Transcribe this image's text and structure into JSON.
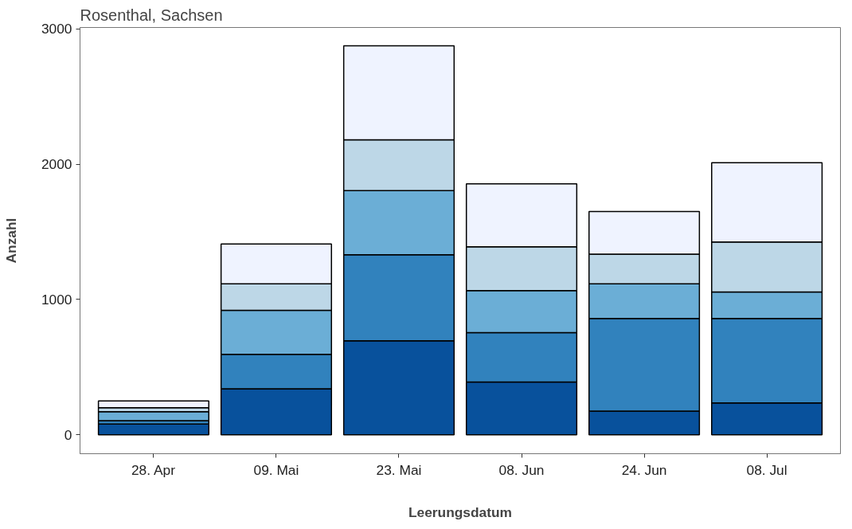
{
  "chart_data": {
    "type": "bar",
    "title": "Rosenthal, Sachsen",
    "xlabel": "Leerungsdatum",
    "ylabel": "Anzahl",
    "categories": [
      "28. Apr",
      "09. Mai",
      "23. Mai",
      "08. Jun",
      "24. Jun",
      "08. Jul"
    ],
    "stacked": true,
    "ylim": [
      -140,
      3010
    ],
    "yticks": [
      0,
      1000,
      2000,
      3000
    ],
    "grid": false,
    "series": [
      {
        "color": "#08519c",
        "values": [
          80,
          340,
          695,
          390,
          175,
          235
        ]
      },
      {
        "color": "#3182bd",
        "values": [
          25,
          255,
          635,
          365,
          685,
          625
        ]
      },
      {
        "color": "#6baed6",
        "values": [
          65,
          325,
          475,
          310,
          255,
          195
        ]
      },
      {
        "color": "#bdd7e7",
        "values": [
          30,
          195,
          375,
          325,
          220,
          370
        ]
      },
      {
        "color": "#eff3ff",
        "values": [
          50,
          295,
          695,
          465,
          315,
          585
        ]
      }
    ]
  }
}
